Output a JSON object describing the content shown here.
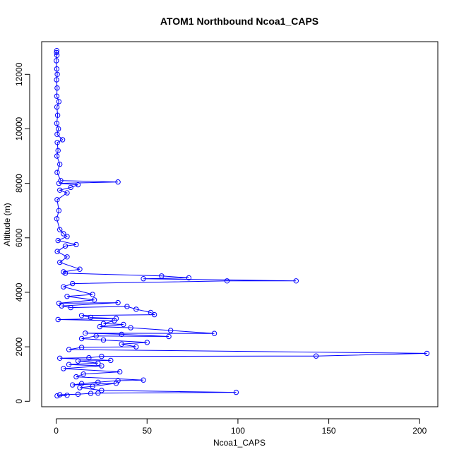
{
  "chart_data": {
    "type": "line",
    "title": "ATOM1 Northbound Ncoa1_CAPS",
    "xlabel": "Ncoa1_CAPS",
    "ylabel": "Altitude (m)",
    "xlim": [
      -8,
      210
    ],
    "ylim": [
      -200,
      13200
    ],
    "x_ticks": [
      0,
      50,
      100,
      150,
      200
    ],
    "y_ticks": [
      0,
      2000,
      4000,
      6000,
      8000,
      10000,
      12000
    ],
    "grid": false,
    "legend": "none",
    "series": [
      {
        "marker": "open-circle",
        "line": true,
        "color": "#0000ff",
        "points": [
          [
            0.3,
            12870
          ],
          [
            0.2,
            12800
          ],
          [
            0.4,
            12700
          ],
          [
            0.1,
            12500
          ],
          [
            0.3,
            12200
          ],
          [
            0.6,
            12000
          ],
          [
            0.2,
            11800
          ],
          [
            0.5,
            11500
          ],
          [
            0.3,
            11200
          ],
          [
            1.5,
            11000
          ],
          [
            0.4,
            10800
          ],
          [
            0.8,
            10500
          ],
          [
            0.3,
            10200
          ],
          [
            1.2,
            10000
          ],
          [
            0.5,
            9800
          ],
          [
            3.5,
            9600
          ],
          [
            0.6,
            9500
          ],
          [
            1.0,
            9200
          ],
          [
            0.4,
            9000
          ],
          [
            2.0,
            8700
          ],
          [
            0.5,
            8400
          ],
          [
            2.5,
            8100
          ],
          [
            34,
            8050
          ],
          [
            1.5,
            8000
          ],
          [
            12,
            7950
          ],
          [
            8,
            7850
          ],
          [
            2.0,
            7750
          ],
          [
            6,
            7650
          ],
          [
            0.5,
            7400
          ],
          [
            1.5,
            7000
          ],
          [
            0.3,
            6700
          ],
          [
            2.0,
            6300
          ],
          [
            4,
            6150
          ],
          [
            6,
            6050
          ],
          [
            1.0,
            5900
          ],
          [
            11,
            5750
          ],
          [
            5,
            5700
          ],
          [
            0.6,
            5500
          ],
          [
            6,
            5300
          ],
          [
            2.0,
            5100
          ],
          [
            13,
            4850
          ],
          [
            4,
            4750
          ],
          [
            5,
            4700
          ],
          [
            58,
            4600
          ],
          [
            73,
            4530
          ],
          [
            48,
            4500
          ],
          [
            132,
            4420
          ],
          [
            94,
            4420
          ],
          [
            9,
            4320
          ],
          [
            4,
            4200
          ],
          [
            20,
            3920
          ],
          [
            6,
            3850
          ],
          [
            21,
            3720
          ],
          [
            1.5,
            3600
          ],
          [
            34,
            3620
          ],
          [
            3,
            3500
          ],
          [
            8,
            3440
          ],
          [
            39,
            3480
          ],
          [
            44,
            3380
          ],
          [
            52,
            3260
          ],
          [
            54,
            3180
          ],
          [
            14,
            3150
          ],
          [
            19,
            3080
          ],
          [
            33,
            3040
          ],
          [
            1.0,
            3000
          ],
          [
            32,
            2960
          ],
          [
            26,
            2850
          ],
          [
            37,
            2820
          ],
          [
            24,
            2740
          ],
          [
            41,
            2700
          ],
          [
            63,
            2600
          ],
          [
            87,
            2490
          ],
          [
            16,
            2500
          ],
          [
            36,
            2460
          ],
          [
            62,
            2380
          ],
          [
            22,
            2400
          ],
          [
            14,
            2300
          ],
          [
            26,
            2250
          ],
          [
            50,
            2160
          ],
          [
            36,
            2100
          ],
          [
            44,
            2000
          ],
          [
            14,
            1980
          ],
          [
            7,
            1900
          ],
          [
            204,
            1760
          ],
          [
            143,
            1660
          ],
          [
            25,
            1650
          ],
          [
            18,
            1600
          ],
          [
            2,
            1580
          ],
          [
            30,
            1500
          ],
          [
            12,
            1480
          ],
          [
            23,
            1400
          ],
          [
            7,
            1350
          ],
          [
            25,
            1300
          ],
          [
            4,
            1200
          ],
          [
            35,
            1080
          ],
          [
            15,
            1000
          ],
          [
            11,
            900
          ],
          [
            48,
            780
          ],
          [
            34,
            760
          ],
          [
            23,
            700
          ],
          [
            14,
            650
          ],
          [
            9,
            600
          ],
          [
            33,
            660
          ],
          [
            20,
            550
          ],
          [
            13,
            500
          ],
          [
            25,
            400
          ],
          [
            99,
            330
          ],
          [
            23,
            300
          ],
          [
            19,
            290
          ],
          [
            12,
            260
          ],
          [
            2,
            240
          ],
          [
            6,
            220
          ],
          [
            0.5,
            200
          ]
        ]
      }
    ]
  }
}
